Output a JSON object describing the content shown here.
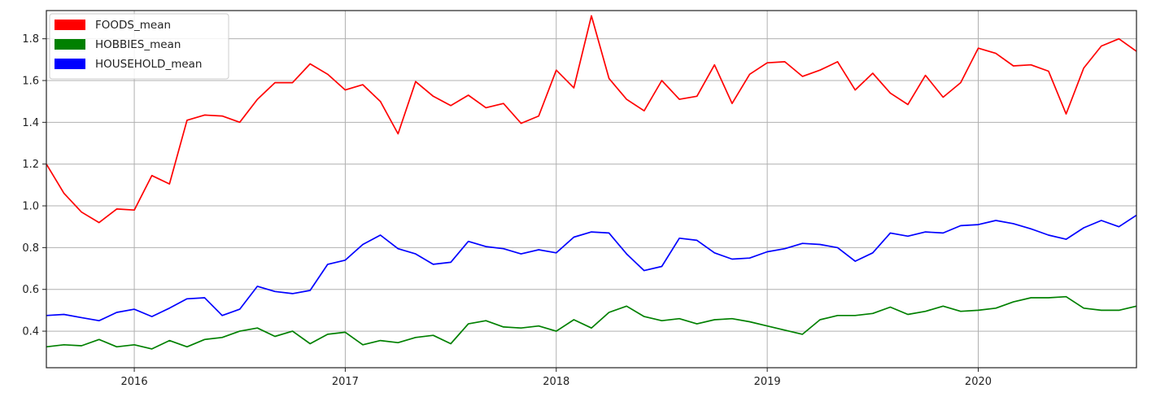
{
  "chart_data": {
    "type": "line",
    "title": "",
    "xlabel": "",
    "ylabel": "",
    "x": [
      "2015-08",
      "2015-09",
      "2015-10",
      "2015-11",
      "2015-12",
      "2016-01",
      "2016-02",
      "2016-03",
      "2016-04",
      "2016-05",
      "2016-06",
      "2016-07",
      "2016-08",
      "2016-09",
      "2016-10",
      "2016-11",
      "2016-12",
      "2017-01",
      "2017-02",
      "2017-03",
      "2017-04",
      "2017-05",
      "2017-06",
      "2017-07",
      "2017-08",
      "2017-09",
      "2017-10",
      "2017-11",
      "2017-12",
      "2018-01",
      "2018-02",
      "2018-03",
      "2018-04",
      "2018-05",
      "2018-06",
      "2018-07",
      "2018-08",
      "2018-09",
      "2018-10",
      "2018-11",
      "2018-12",
      "2019-01",
      "2019-02",
      "2019-03",
      "2019-04",
      "2019-05",
      "2019-06",
      "2019-07",
      "2019-08",
      "2019-09",
      "2019-10",
      "2019-11",
      "2019-12",
      "2020-01",
      "2020-02",
      "2020-03",
      "2020-04",
      "2020-05",
      "2020-06",
      "2020-07",
      "2020-08",
      "2020-09",
      "2020-10"
    ],
    "xlim": [
      "2015-08",
      "2020-10"
    ],
    "ylim": [
      0.225,
      1.935
    ],
    "x_ticks": [
      "2016",
      "2017",
      "2018",
      "2019",
      "2020"
    ],
    "y_ticks": [
      "0.4",
      "0.6",
      "0.8",
      "1.0",
      "1.2",
      "1.4",
      "1.6",
      "1.8"
    ],
    "grid": true,
    "legend_position": "top-left",
    "series": [
      {
        "name": "FOODS_mean",
        "color": "#ff0000",
        "values": [
          1.2,
          1.06,
          0.97,
          0.92,
          0.985,
          0.98,
          1.145,
          1.105,
          1.41,
          1.435,
          1.43,
          1.4,
          1.51,
          1.59,
          1.59,
          1.68,
          1.63,
          1.555,
          1.58,
          1.5,
          1.345,
          1.595,
          1.525,
          1.48,
          1.53,
          1.47,
          1.49,
          1.395,
          1.43,
          1.65,
          1.565,
          1.91,
          1.61,
          1.51,
          1.455,
          1.6,
          1.51,
          1.525,
          1.675,
          1.49,
          1.63,
          1.685,
          1.69,
          1.62,
          1.65,
          1.69,
          1.555,
          1.635,
          1.54,
          1.485,
          1.625,
          1.52,
          1.59,
          1.755,
          1.73,
          1.67,
          1.675,
          1.645,
          1.44,
          1.66,
          1.765,
          1.8,
          1.74
        ]
      },
      {
        "name": "HOBBIES_mean",
        "color": "#008000",
        "values": [
          0.325,
          0.335,
          0.33,
          0.36,
          0.325,
          0.335,
          0.315,
          0.355,
          0.325,
          0.36,
          0.37,
          0.4,
          0.415,
          0.375,
          0.4,
          0.34,
          0.385,
          0.395,
          0.335,
          0.355,
          0.345,
          0.37,
          0.38,
          0.34,
          0.435,
          0.45,
          0.42,
          0.415,
          0.425,
          0.4,
          0.455,
          0.415,
          0.49,
          0.52,
          0.47,
          0.45,
          0.46,
          0.435,
          0.455,
          0.46,
          0.445,
          0.425,
          0.405,
          0.385,
          0.455,
          0.475,
          0.475,
          0.485,
          0.515,
          0.48,
          0.495,
          0.52,
          0.495,
          0.5,
          0.51,
          0.54,
          0.56,
          0.56,
          0.565,
          0.51,
          0.5,
          0.5,
          0.52
        ]
      },
      {
        "name": "HOUSEHOLD_mean",
        "color": "#0000ff",
        "values": [
          0.475,
          0.48,
          0.465,
          0.45,
          0.49,
          0.505,
          0.47,
          0.51,
          0.555,
          0.56,
          0.475,
          0.505,
          0.615,
          0.59,
          0.58,
          0.595,
          0.72,
          0.74,
          0.815,
          0.86,
          0.795,
          0.77,
          0.72,
          0.73,
          0.83,
          0.805,
          0.795,
          0.77,
          0.79,
          0.775,
          0.85,
          0.875,
          0.87,
          0.77,
          0.69,
          0.71,
          0.845,
          0.835,
          0.775,
          0.745,
          0.75,
          0.78,
          0.795,
          0.82,
          0.815,
          0.8,
          0.735,
          0.775,
          0.87,
          0.855,
          0.875,
          0.87,
          0.905,
          0.91,
          0.93,
          0.915,
          0.89,
          0.86,
          0.84,
          0.895,
          0.93,
          0.9,
          0.955
        ]
      }
    ]
  }
}
